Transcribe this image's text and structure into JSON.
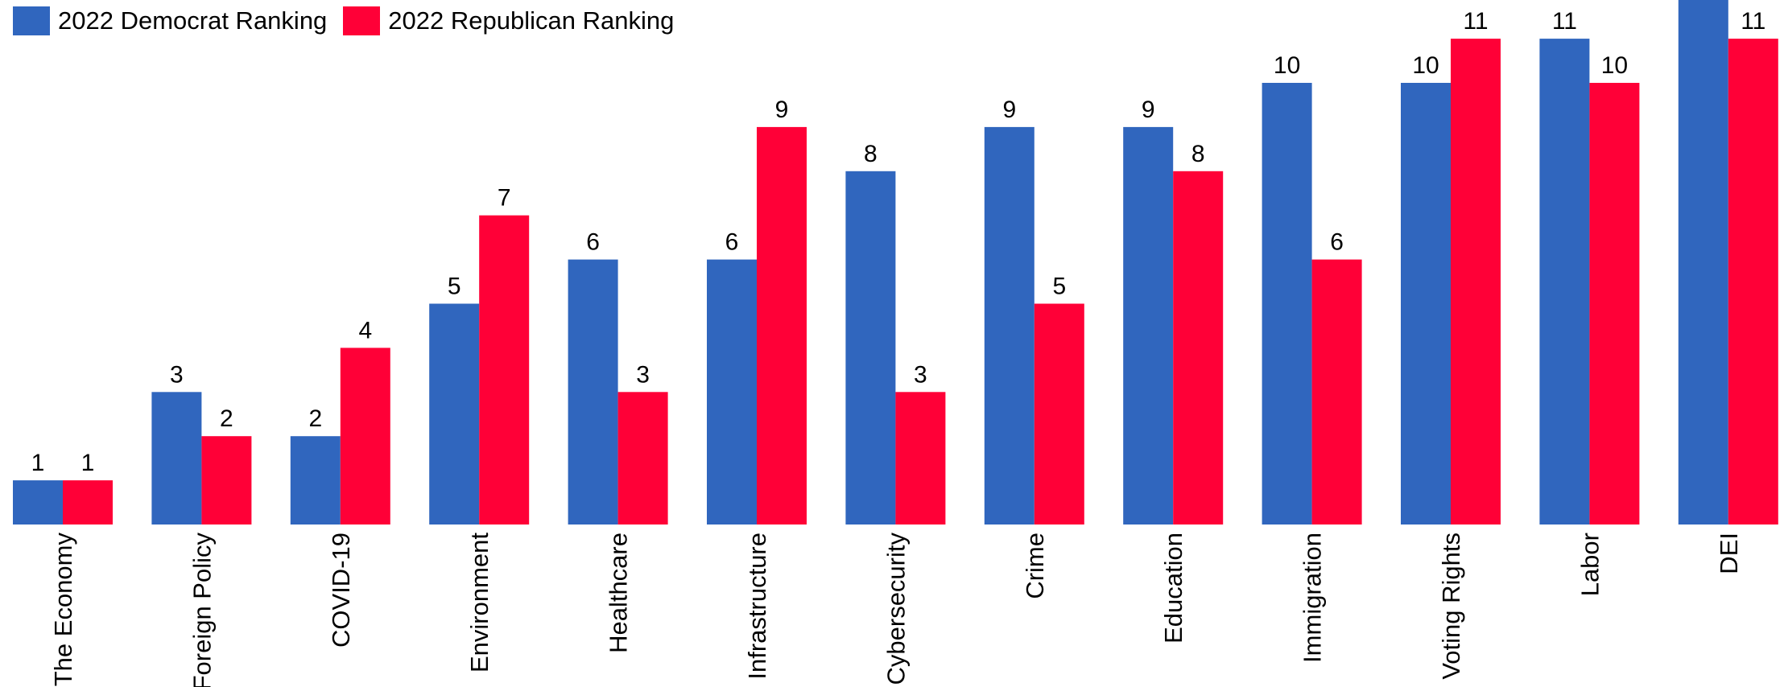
{
  "chart_data": {
    "type": "bar",
    "categories": [
      "The Economy",
      "Foreign Policy",
      "COVID-19",
      "Environment",
      "Healthcare",
      "Infrastructure",
      "Cybersecurity",
      "Crime",
      "Education",
      "Immigration",
      "Voting Rights",
      "Labor",
      "DEI"
    ],
    "series": [
      {
        "name": "2022 Democrat Ranking",
        "color": "#3066be",
        "values": [
          1,
          3,
          2,
          5,
          6,
          6,
          8,
          9,
          9,
          10,
          10,
          11,
          12
        ],
        "labels": [
          "1",
          "3",
          "2",
          "5",
          "6",
          "6",
          "8",
          "9",
          "9",
          "10",
          "10",
          "11",
          ""
        ]
      },
      {
        "name": "2022 Republican Ranking",
        "color": "#ff0037",
        "values": [
          1,
          2,
          4,
          7,
          3,
          9,
          3,
          5,
          8,
          6,
          11,
          10,
          11
        ],
        "labels": [
          "1",
          "2",
          "4",
          "7",
          "3",
          "9",
          "3",
          "5",
          "8",
          "6",
          "11",
          "10",
          "11"
        ]
      }
    ],
    "title": "",
    "xlabel": "",
    "ylabel": "",
    "ylim": [
      0,
      12
    ],
    "grid": false,
    "legend_position": "top-left"
  }
}
